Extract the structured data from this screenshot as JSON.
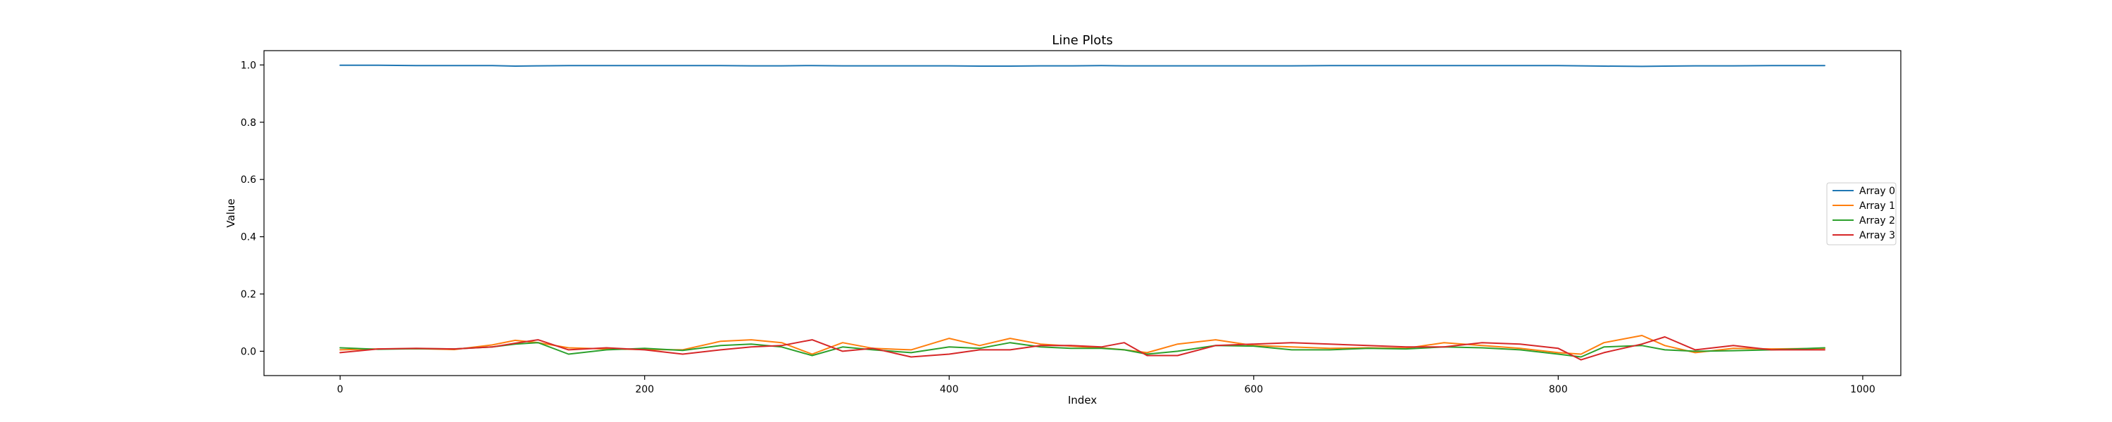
{
  "chart_data": {
    "type": "line",
    "title": "Line Plots",
    "xlabel": "Index",
    "ylabel": "Value",
    "xlim": [
      -50,
      1025
    ],
    "ylim": [
      -0.085,
      1.05
    ],
    "xticks": [
      0,
      200,
      400,
      600,
      800,
      1000
    ],
    "xtick_labels": [
      "0",
      "200",
      "400",
      "600",
      "800",
      "1000"
    ],
    "yticks": [
      0.0,
      0.2,
      0.4,
      0.6,
      0.8,
      1.0
    ],
    "ytick_labels": [
      "0.0",
      "0.2",
      "0.4",
      "0.6",
      "0.8",
      "1.0"
    ],
    "grid": false,
    "legend_position": "center-right",
    "x": [
      0,
      25,
      50,
      75,
      100,
      115,
      130,
      150,
      175,
      200,
      225,
      250,
      270,
      290,
      310,
      330,
      350,
      375,
      400,
      420,
      440,
      460,
      480,
      500,
      515,
      530,
      550,
      575,
      600,
      625,
      650,
      675,
      700,
      725,
      750,
      775,
      800,
      815,
      830,
      855,
      870,
      890,
      915,
      940,
      975
    ],
    "series": [
      {
        "name": "Array 0",
        "color": "#1f77b4",
        "values": [
          0.999,
          0.999,
          0.998,
          0.998,
          0.998,
          0.996,
          0.997,
          0.998,
          0.998,
          0.998,
          0.998,
          0.998,
          0.997,
          0.997,
          0.998,
          0.997,
          0.997,
          0.997,
          0.997,
          0.996,
          0.996,
          0.997,
          0.997,
          0.998,
          0.997,
          0.997,
          0.997,
          0.997,
          0.997,
          0.997,
          0.998,
          0.998,
          0.998,
          0.998,
          0.998,
          0.998,
          0.998,
          0.997,
          0.996,
          0.995,
          0.996,
          0.997,
          0.997,
          0.998,
          0.998
        ]
      },
      {
        "name": "Array 1",
        "color": "#ff7f0e",
        "values": [
          0.005,
          0.008,
          0.009,
          0.006,
          0.022,
          0.038,
          0.03,
          0.012,
          0.008,
          0.006,
          0.005,
          0.035,
          0.04,
          0.03,
          -0.01,
          0.03,
          0.01,
          0.005,
          0.045,
          0.02,
          0.045,
          0.025,
          0.018,
          0.012,
          0.005,
          -0.005,
          0.025,
          0.04,
          0.02,
          0.015,
          0.01,
          0.012,
          0.01,
          0.03,
          0.02,
          0.01,
          -0.005,
          -0.01,
          0.03,
          0.055,
          0.02,
          -0.005,
          0.01,
          0.008,
          0.01
        ]
      },
      {
        "name": "Array 2",
        "color": "#2ca02c",
        "values": [
          0.012,
          0.007,
          0.009,
          0.008,
          0.015,
          0.025,
          0.03,
          -0.01,
          0.005,
          0.01,
          0.003,
          0.02,
          0.025,
          0.015,
          -0.015,
          0.015,
          0.005,
          -0.005,
          0.015,
          0.01,
          0.03,
          0.015,
          0.01,
          0.01,
          0.005,
          -0.01,
          0.0,
          0.02,
          0.018,
          0.005,
          0.005,
          0.01,
          0.008,
          0.015,
          0.012,
          0.005,
          -0.01,
          -0.02,
          0.015,
          0.02,
          0.005,
          0.0,
          0.002,
          0.005,
          0.012
        ]
      },
      {
        "name": "Array 3",
        "color": "#d62728",
        "values": [
          -0.005,
          0.008,
          0.01,
          0.008,
          0.015,
          0.028,
          0.04,
          0.005,
          0.012,
          0.005,
          -0.01,
          0.005,
          0.015,
          0.02,
          0.04,
          0.0,
          0.01,
          -0.02,
          -0.01,
          0.005,
          0.005,
          0.02,
          0.02,
          0.015,
          0.03,
          -0.015,
          -0.015,
          0.02,
          0.025,
          0.03,
          0.025,
          0.02,
          0.015,
          0.015,
          0.03,
          0.025,
          0.01,
          -0.03,
          -0.005,
          0.025,
          0.05,
          0.005,
          0.02,
          0.005,
          0.005
        ]
      }
    ]
  }
}
